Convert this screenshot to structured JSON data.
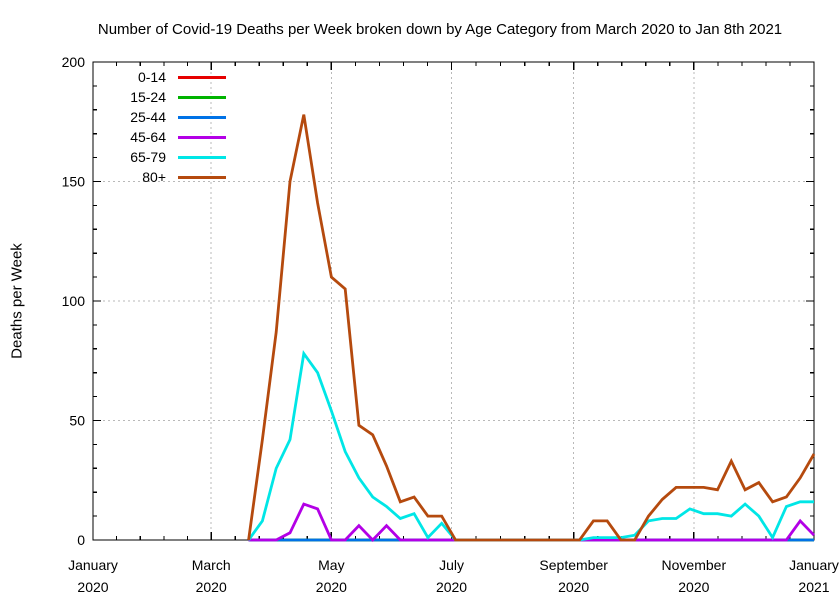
{
  "chart_data": {
    "type": "line",
    "title": "Number of Covid-19 Deaths per Week broken down by Age Category from March 2020 to Jan 8th 2021",
    "xlabel": "",
    "ylabel": "Deaths per Week",
    "ylim": [
      0,
      200
    ],
    "y_major_ticks": [
      0,
      50,
      100,
      150,
      200
    ],
    "y_minor_step": 10,
    "grid": "dotted at major ticks",
    "legend_position": "top-left",
    "x_range_days": [
      0,
      366
    ],
    "x_ticks": [
      {
        "month": "January",
        "year": "2020",
        "day": 0
      },
      {
        "month": "March",
        "year": "2020",
        "day": 60
      },
      {
        "month": "May",
        "year": "2020",
        "day": 121
      },
      {
        "month": "July",
        "year": "2020",
        "day": 182
      },
      {
        "month": "September",
        "year": "2020",
        "day": 244
      },
      {
        "month": "November",
        "year": "2020",
        "day": 305
      },
      {
        "month": "January",
        "year": "2021",
        "day": 366
      }
    ],
    "weeks": [
      "2020-03-20",
      "2020-03-27",
      "2020-04-03",
      "2020-04-10",
      "2020-04-17",
      "2020-04-24",
      "2020-05-01",
      "2020-05-08",
      "2020-05-15",
      "2020-05-22",
      "2020-05-29",
      "2020-06-05",
      "2020-06-12",
      "2020-06-19",
      "2020-06-26",
      "2020-07-03",
      "2020-07-10",
      "2020-07-17",
      "2020-07-24",
      "2020-07-31",
      "2020-08-07",
      "2020-08-14",
      "2020-08-21",
      "2020-08-28",
      "2020-09-04",
      "2020-09-11",
      "2020-09-18",
      "2020-09-25",
      "2020-10-02",
      "2020-10-09",
      "2020-10-16",
      "2020-10-23",
      "2020-10-30",
      "2020-11-06",
      "2020-11-13",
      "2020-11-20",
      "2020-11-27",
      "2020-12-04",
      "2020-12-11",
      "2020-12-18",
      "2020-12-25",
      "2021-01-01"
    ],
    "series": [
      {
        "name": "0-14",
        "color": "#e60000",
        "values": [
          0,
          0,
          0,
          0,
          0,
          0,
          0,
          0,
          0,
          0,
          0,
          0,
          0,
          0,
          0,
          0,
          0,
          0,
          0,
          0,
          0,
          0,
          0,
          0,
          0,
          0,
          0,
          0,
          0,
          0,
          0,
          0,
          0,
          0,
          0,
          0,
          0,
          0,
          0,
          0,
          0,
          0
        ]
      },
      {
        "name": "15-24",
        "color": "#00b300",
        "values": [
          0,
          0,
          0,
          0,
          0,
          0,
          0,
          0,
          0,
          0,
          0,
          0,
          0,
          0,
          0,
          0,
          0,
          0,
          0,
          0,
          0,
          0,
          0,
          0,
          0,
          0,
          0,
          0,
          0,
          0,
          0,
          0,
          0,
          0,
          0,
          0,
          0,
          0,
          0,
          0,
          0,
          0
        ]
      },
      {
        "name": "25-44",
        "color": "#0072e6",
        "values": [
          0,
          0,
          0,
          0,
          0,
          0,
          0,
          0,
          0,
          0,
          0,
          0,
          0,
          0,
          0,
          0,
          0,
          0,
          0,
          0,
          0,
          0,
          0,
          0,
          0,
          0,
          0,
          0,
          0,
          0,
          0,
          0,
          0,
          0,
          0,
          0,
          0,
          0,
          0,
          0,
          0,
          0
        ]
      },
      {
        "name": "45-64",
        "color": "#b300e6",
        "values": [
          0,
          0,
          0,
          3,
          15,
          13,
          0,
          0,
          6,
          0,
          6,
          0,
          0,
          0,
          0,
          0,
          0,
          0,
          0,
          0,
          0,
          0,
          0,
          0,
          0,
          0,
          0,
          0,
          0,
          0,
          0,
          0,
          0,
          0,
          0,
          0,
          0,
          0,
          0,
          0,
          8,
          2
        ]
      },
      {
        "name": "65-79",
        "color": "#00e6e6",
        "values": [
          0,
          8,
          30,
          42,
          78,
          70,
          54,
          37,
          26,
          18,
          14,
          9,
          11,
          1,
          7,
          0,
          0,
          0,
          0,
          0,
          0,
          0,
          0,
          0,
          0,
          1,
          1,
          1,
          2,
          8,
          9,
          9,
          13,
          11,
          11,
          10,
          15,
          10,
          1,
          14,
          16,
          16
        ]
      },
      {
        "name": "80+",
        "color": "#b54a0e",
        "values": [
          0,
          42,
          87,
          150,
          178,
          141,
          110,
          105,
          48,
          44,
          31,
          16,
          18,
          10,
          10,
          0,
          0,
          0,
          0,
          0,
          0,
          0,
          0,
          0,
          0,
          8,
          8,
          0,
          0,
          10,
          17,
          22,
          22,
          22,
          21,
          33,
          21,
          24,
          16,
          18,
          26,
          36
        ]
      }
    ],
    "style": {
      "grid_color": "#b9b9b9",
      "axis_color": "#000000",
      "background": "#ffffff",
      "line_width": 2.8
    }
  }
}
